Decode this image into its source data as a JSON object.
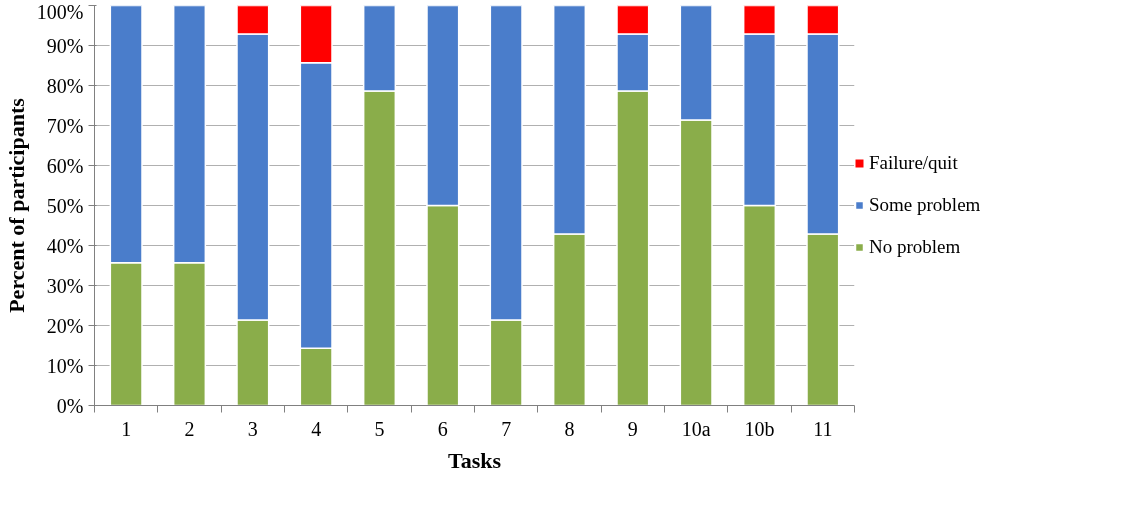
{
  "chart_data": {
    "type": "bar",
    "stacked": true,
    "xlabel": "Tasks",
    "ylabel": "Percent of participants",
    "categories": [
      "1",
      "2",
      "3",
      "4",
      "5",
      "6",
      "7",
      "8",
      "9",
      "10a",
      "10b",
      "11"
    ],
    "series": [
      {
        "name": "No problem",
        "color": "#8aad4a",
        "values": [
          35.7,
          35.7,
          21.4,
          14.3,
          78.6,
          50,
          21.4,
          42.9,
          78.6,
          71.4,
          50,
          42.9
        ]
      },
      {
        "name": "Some problem",
        "color": "#4a7dcb",
        "values": [
          64.3,
          64.3,
          71.5,
          71.4,
          21.4,
          50,
          78.6,
          57.1,
          14.3,
          28.6,
          42.9,
          50
        ]
      },
      {
        "name": "Failure/quit",
        "color": "#ff0000",
        "values": [
          0,
          0,
          7.1,
          14.3,
          0,
          0,
          0,
          0,
          7.1,
          0,
          7.1,
          7.1
        ]
      }
    ],
    "ylim": [
      0,
      100
    ],
    "yticks": [
      {
        "value": 0,
        "label": "0%"
      },
      {
        "value": 10,
        "label": "10%"
      },
      {
        "value": 20,
        "label": "20%"
      },
      {
        "value": 30,
        "label": "30%"
      },
      {
        "value": 40,
        "label": "40%"
      },
      {
        "value": 50,
        "label": "50%"
      },
      {
        "value": 60,
        "label": "60%"
      },
      {
        "value": 70,
        "label": "70%"
      },
      {
        "value": 80,
        "label": "80%"
      },
      {
        "value": 90,
        "label": "90%"
      },
      {
        "value": 100,
        "label": "100%"
      }
    ],
    "grid": "y",
    "legend": "right"
  }
}
